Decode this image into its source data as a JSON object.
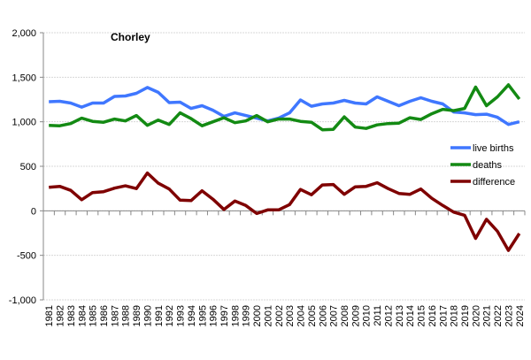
{
  "chart_data": {
    "type": "line",
    "title": "Chorley",
    "xlabel": "",
    "ylabel": "",
    "ylim": [
      -1000,
      2000
    ],
    "yticks": [
      "2,000",
      "1,500",
      "1,000",
      "500",
      "0",
      "-500",
      "-1,000"
    ],
    "ytick_values": [
      2000,
      1500,
      1000,
      500,
      0,
      -500,
      -1000
    ],
    "grid": true,
    "legend": "right",
    "categories": [
      "1981",
      "1982",
      "1983",
      "1984",
      "1985",
      "1986",
      "1987",
      "1988",
      "1989",
      "1990",
      "1991",
      "1992",
      "1993",
      "1994",
      "1995",
      "1996",
      "1997",
      "1998",
      "1999",
      "2000",
      "2001",
      "2002",
      "2003",
      "2004",
      "2005",
      "2006",
      "2007",
      "2008",
      "2009",
      "2010",
      "2011",
      "2012",
      "2013",
      "2014",
      "2015",
      "2016",
      "2017",
      "2018",
      "2019",
      "2020",
      "2021",
      "2022",
      "2023",
      "2024"
    ],
    "series": [
      {
        "name": "live births",
        "color": "#3f77ff",
        "values": [
          1225,
          1230,
          1210,
          1165,
          1210,
          1210,
          1285,
          1290,
          1320,
          1385,
          1330,
          1215,
          1220,
          1150,
          1180,
          1130,
          1060,
          1100,
          1070,
          1040,
          1010,
          1040,
          1100,
          1245,
          1175,
          1200,
          1210,
          1240,
          1210,
          1200,
          1280,
          1230,
          1180,
          1230,
          1270,
          1230,
          1200,
          1110,
          1100,
          1080,
          1085,
          1050,
          970,
          1000
        ]
      },
      {
        "name": "deaths",
        "color": "#138a13",
        "values": [
          960,
          955,
          980,
          1040,
          1005,
          995,
          1030,
          1010,
          1070,
          960,
          1020,
          970,
          1100,
          1035,
          955,
          1000,
          1045,
          990,
          1010,
          1070,
          1000,
          1030,
          1030,
          1005,
          995,
          910,
          915,
          1055,
          940,
          925,
          965,
          980,
          985,
          1045,
          1025,
          1090,
          1140,
          1125,
          1150,
          1390,
          1180,
          1280,
          1415,
          1255
        ]
      },
      {
        "name": "difference",
        "color": "#7f0000",
        "values": [
          265,
          275,
          230,
          125,
          205,
          215,
          255,
          280,
          250,
          425,
          310,
          245,
          120,
          115,
          225,
          130,
          15,
          110,
          60,
          -30,
          10,
          10,
          70,
          240,
          180,
          290,
          295,
          185,
          270,
          275,
          315,
          250,
          195,
          185,
          245,
          140,
          60,
          -15,
          -50,
          -310,
          -95,
          -230,
          -445,
          -255
        ]
      }
    ]
  }
}
